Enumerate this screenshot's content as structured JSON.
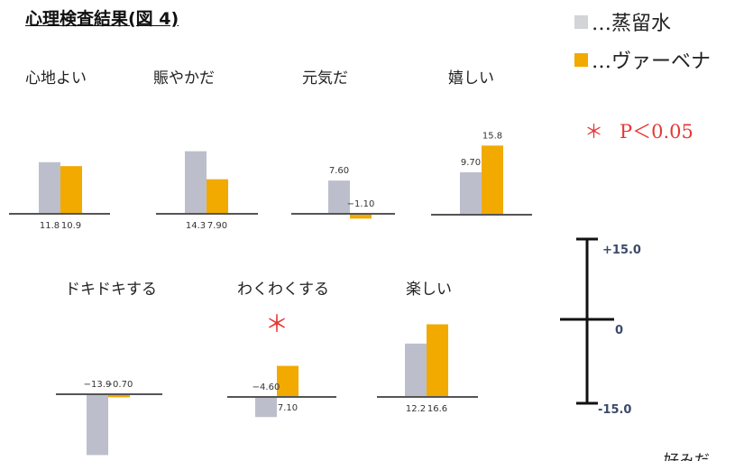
{
  "title": "心理検査結果(図 4)",
  "legend": [
    {
      "marker": "■",
      "text": "…蒸留水",
      "color": "#d3d4d8"
    },
    {
      "marker": "■",
      "text": "…ヴァーベナ",
      "color": "#f2a900"
    }
  ],
  "significance": {
    "symbol": "＊",
    "text": "P＜0.05",
    "color": "#e53935"
  },
  "scale": {
    "top_label": "+15.0",
    "mid_label": "0",
    "bottom_label": "-15.0"
  },
  "footer_partial_text": "好みだ",
  "colors": {
    "water": "#bcbfcb",
    "verbena": "#f2a900",
    "baseline": "#555555",
    "value_text": "#333333",
    "scale_line": "#111111",
    "scale_text": "#3d4a6b"
  },
  "chart_data": {
    "type": "bar",
    "title": "心理検査結果(図 4)",
    "series_names": [
      "蒸留水",
      "ヴァーベナ"
    ],
    "ylim": [
      -15.0,
      15.0
    ],
    "grid": false,
    "legend_position": "top-right",
    "panels": [
      {
        "label": "心地よい",
        "values": [
          11.8,
          10.9
        ],
        "value_labels": [
          "11.8",
          "10.9"
        ],
        "significant": false
      },
      {
        "label": "賑やかだ",
        "values": [
          14.3,
          7.9
        ],
        "value_labels": [
          "14.3",
          "7.90"
        ],
        "significant": false
      },
      {
        "label": "元気だ",
        "values": [
          7.6,
          -1.1
        ],
        "value_labels": [
          "7.60",
          "−1.10"
        ],
        "significant": false
      },
      {
        "label": "嬉しい",
        "values": [
          9.7,
          15.8
        ],
        "value_labels": [
          "9.70",
          "15.8"
        ],
        "significant": false
      },
      {
        "label": "ドキドキする",
        "values": [
          -13.9,
          -0.7
        ],
        "value_labels": [
          "−13.9",
          "−0.70"
        ],
        "significant": false
      },
      {
        "label": "わくわくする",
        "values": [
          -4.6,
          7.1
        ],
        "value_labels": [
          "−4.60",
          "7.10"
        ],
        "significant": true
      },
      {
        "label": "楽しい",
        "values": [
          12.2,
          16.6
        ],
        "value_labels": [
          "12.2",
          "16.6"
        ],
        "significant": false
      }
    ]
  }
}
